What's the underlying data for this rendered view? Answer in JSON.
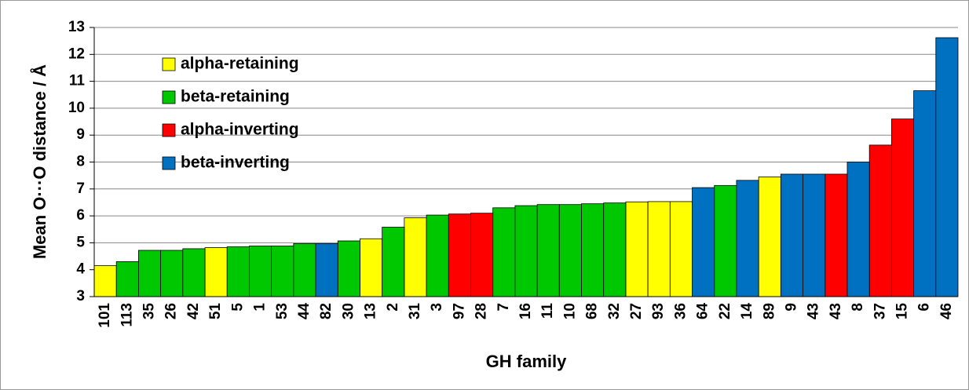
{
  "chart_data": {
    "type": "bar",
    "ylabel": "Mean O···O distance / Å",
    "xlabel": "GH family",
    "categories": [
      "101",
      "113",
      "35",
      "26",
      "42",
      "51",
      "5",
      "1",
      "53",
      "44",
      "82",
      "30",
      "13",
      "2",
      "31",
      "3",
      "97",
      "28",
      "7",
      "16",
      "11",
      "10",
      "68",
      "32",
      "27",
      "93",
      "36",
      "64",
      "22",
      "14",
      "89",
      "9",
      "43",
      "43",
      "8",
      "37",
      "15",
      "6",
      "46"
    ],
    "series": [
      {
        "name": "alpha-retaining",
        "color": "#ffff00",
        "values": [
          4.15,
          null,
          null,
          null,
          null,
          4.82,
          null,
          null,
          null,
          null,
          null,
          null,
          5.15,
          null,
          5.93,
          null,
          null,
          null,
          null,
          null,
          null,
          null,
          null,
          null,
          6.52,
          6.53,
          6.53,
          null,
          null,
          null,
          7.45,
          null,
          null,
          null,
          null,
          null,
          null,
          null,
          null
        ]
      },
      {
        "name": "beta-retaining",
        "color": "#00c800",
        "values": [
          null,
          4.3,
          4.72,
          4.72,
          4.78,
          null,
          4.85,
          4.88,
          4.88,
          4.97,
          null,
          5.07,
          null,
          5.58,
          null,
          6.03,
          null,
          null,
          6.3,
          6.38,
          6.42,
          6.42,
          6.45,
          6.48,
          null,
          null,
          null,
          null,
          7.13,
          null,
          null,
          null,
          null,
          null,
          null,
          null,
          null,
          null,
          null
        ]
      },
      {
        "name": "alpha-inverting",
        "color": "#ff0000",
        "values": [
          null,
          null,
          null,
          null,
          null,
          null,
          null,
          null,
          null,
          null,
          null,
          null,
          null,
          null,
          null,
          null,
          6.07,
          6.1,
          null,
          null,
          null,
          null,
          null,
          null,
          null,
          null,
          null,
          null,
          null,
          null,
          null,
          null,
          null,
          7.55,
          null,
          8.63,
          9.6,
          null,
          null
        ]
      },
      {
        "name": "beta-inverting",
        "color": "#0070c0",
        "values": [
          null,
          null,
          null,
          null,
          null,
          null,
          null,
          null,
          null,
          null,
          4.97,
          null,
          null,
          null,
          null,
          null,
          null,
          null,
          null,
          null,
          null,
          null,
          null,
          null,
          null,
          null,
          null,
          7.05,
          null,
          7.32,
          null,
          7.55,
          7.55,
          null,
          8.0,
          null,
          null,
          10.65,
          12.62
        ]
      }
    ],
    "ylim": [
      3,
      13
    ],
    "yticks": [
      3,
      4,
      5,
      6,
      7,
      8,
      9,
      10,
      11,
      12,
      13
    ],
    "grid": true,
    "legend": "upper left"
  }
}
